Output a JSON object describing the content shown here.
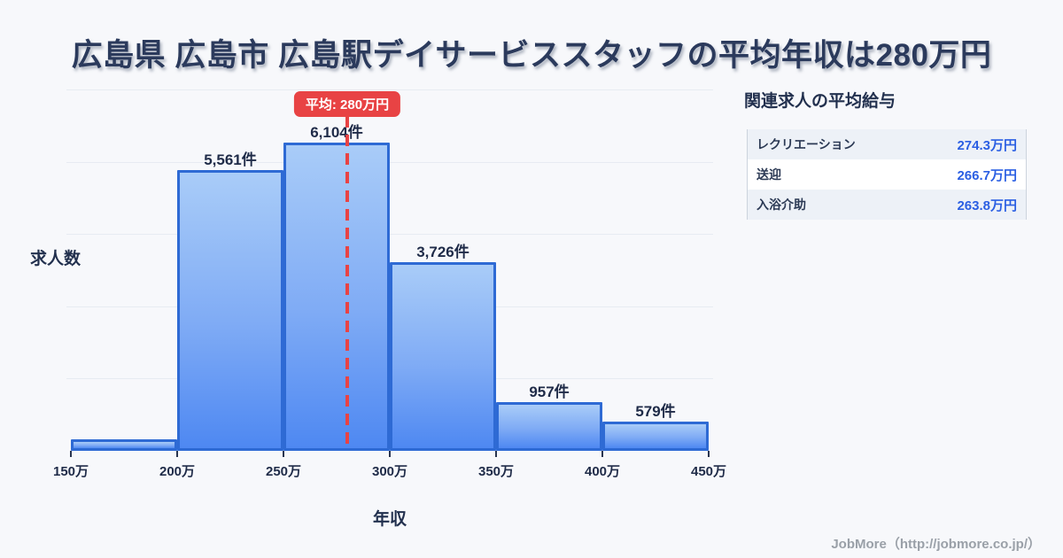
{
  "page": {
    "title": "広島県 広島市 広島駅デイサービススタッフの平均年収は280万円"
  },
  "chart_data": {
    "type": "bar",
    "subtype": "histogram",
    "title": "広島県 広島市 広島駅デイサービススタッフの平均年収は280万円",
    "xlabel": "年収",
    "ylabel": "求人数",
    "categories": [
      "150万-200万",
      "200万-250万",
      "250万-300万",
      "300万-350万",
      "350万-400万",
      "400万-450万"
    ],
    "values": [
      230,
      5561,
      6104,
      3726,
      957,
      579
    ],
    "bar_labels": [
      "",
      "5,561件",
      "6,104件",
      "3,726件",
      "957件",
      "579件"
    ],
    "values_note": "first bin has no on-chart label; 230 estimated from bar height",
    "x_ticks": [
      "150万",
      "200万",
      "250万",
      "300万",
      "350万",
      "400万",
      "450万"
    ],
    "x_range_man_yen": [
      150,
      450
    ],
    "ylim": [
      0,
      7150
    ],
    "grid": true,
    "legend": false,
    "average": {
      "value_man_yen": 280,
      "label": "平均: 280万円"
    }
  },
  "side_panel": {
    "title": "関連求人の平均給与",
    "rows": [
      {
        "label": "レクリエーション",
        "value": "274.3万円"
      },
      {
        "label": "送迎",
        "value": "266.7万円"
      },
      {
        "label": "入浴介助",
        "value": "263.8万円"
      }
    ]
  },
  "footer": {
    "credit": "JobMore（http://jobmore.co.jp/）"
  },
  "colors": {
    "background": "#f7f8fb",
    "title_navy": "#2b3a5c",
    "bar_border": "#2e6ad4",
    "bar_gradient_top": "#a9ccf8",
    "bar_gradient_bottom": "#4e88f2",
    "average_red": "#e84344",
    "value_blue": "#2b5fe3",
    "gridline": "#e7ebf2"
  }
}
